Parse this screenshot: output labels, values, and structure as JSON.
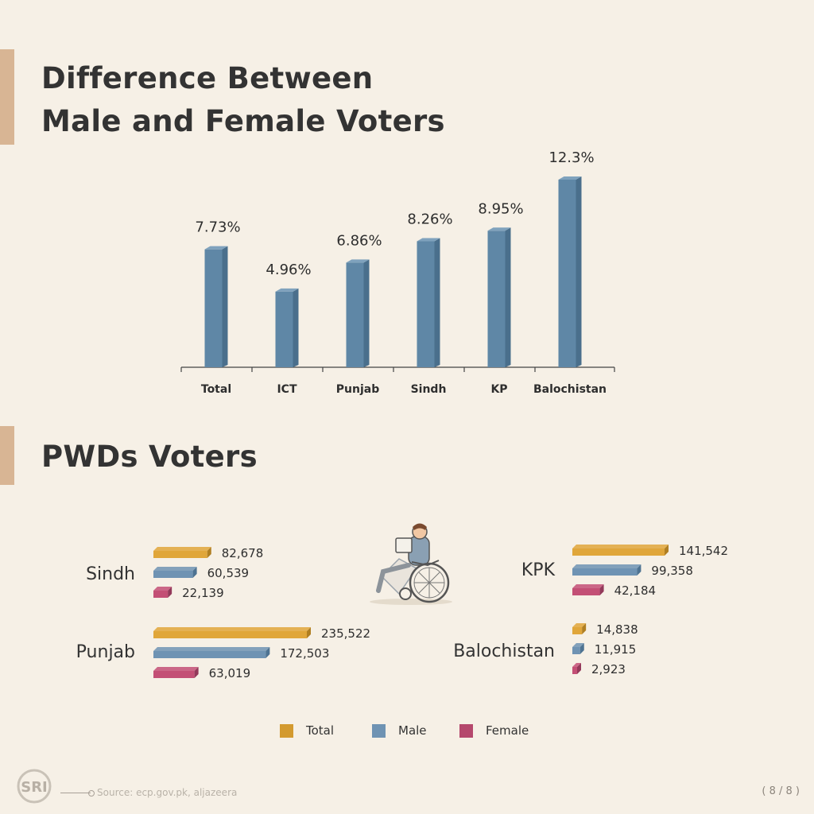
{
  "section1": {
    "title_line1": "Difference Between",
    "title_line2": "Male and Female Voters"
  },
  "section2": {
    "title": "PWDs Voters"
  },
  "chart_data": [
    {
      "type": "bar",
      "title": "Difference Between Male and Female Voters",
      "categories": [
        "Total",
        "ICT",
        "Punjab",
        "Sindh",
        "KP",
        "Balochistan"
      ],
      "values": [
        7.73,
        4.96,
        6.86,
        8.26,
        8.95,
        12.3
      ],
      "value_labels": [
        "7.73%",
        "4.96%",
        "6.86%",
        "8.26%",
        "8.95%",
        "12.3%"
      ],
      "unit": "%",
      "ylim": [
        0,
        12.3
      ],
      "grid": false,
      "color": "#5f87a6"
    },
    {
      "type": "bar",
      "orientation": "horizontal",
      "title": "PWDs Voters",
      "categories": [
        "Sindh",
        "Punjab",
        "KPK",
        "Balochistan"
      ],
      "series": [
        {
          "name": "Total",
          "color": "#e0a63a",
          "values": [
            82678,
            235522,
            141542,
            14838
          ],
          "labels": [
            "82,678",
            "235,522",
            "141,542",
            "14,838"
          ]
        },
        {
          "name": "Male",
          "color": "#6f93b3",
          "values": [
            60539,
            172503,
            99358,
            11915
          ],
          "labels": [
            "60,539",
            "172,503",
            "99,358",
            "11,915"
          ]
        },
        {
          "name": "Female",
          "color": "#c34f75",
          "values": [
            22139,
            63019,
            42184,
            2923
          ],
          "labels": [
            "22,139",
            "63,019",
            "42,184",
            "2,923"
          ]
        }
      ],
      "legend": "bottom"
    }
  ],
  "legend": {
    "total": "Total",
    "male": "Male",
    "female": "Female"
  },
  "footer": {
    "logo_text": "SRI",
    "source": "Source: ecp.gov.pk, aljazeera",
    "page": "( 8 / 8 )"
  },
  "colors": {
    "background": "#f6f0e6",
    "accent": "#d8b594"
  },
  "icons": {
    "illustration": "wheelchair-user-icon"
  }
}
